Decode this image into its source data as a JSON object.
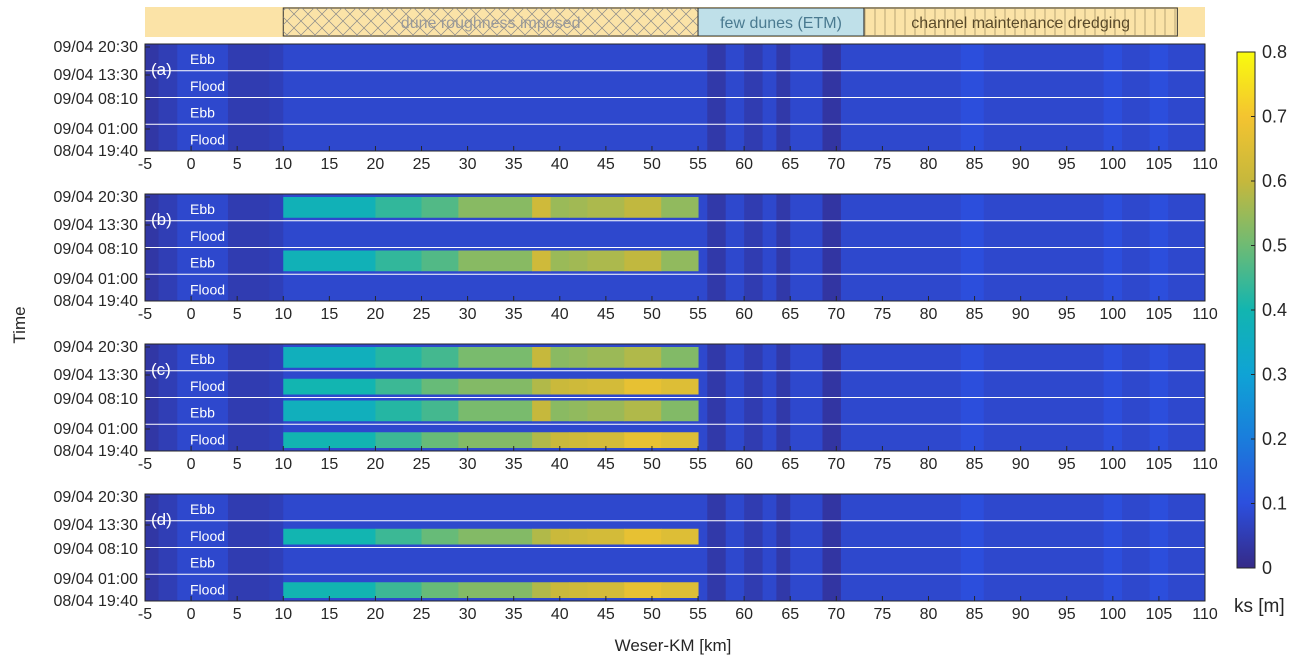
{
  "chart_data": {
    "type": "heatmap",
    "title": "",
    "xlabel": "Weser-KM [km]",
    "ylabel": "Time",
    "xlim": [
      -5,
      110
    ],
    "x_ticks": [
      "-5",
      "0",
      "5",
      "10",
      "15",
      "20",
      "25",
      "30",
      "35",
      "40",
      "45",
      "50",
      "55",
      "60",
      "65",
      "70",
      "75",
      "80",
      "85",
      "90",
      "95",
      "100",
      "105",
      "110"
    ],
    "y_ticks": [
      "09/04 20:30",
      "09/04 13:30",
      "09/04 08:10",
      "09/04 01:00",
      "08/04 19:40"
    ],
    "colorbar": {
      "label": "ks [m]",
      "range": [
        0,
        0.8
      ],
      "ticks": [
        "0",
        "0.1",
        "0.2",
        "0.3",
        "0.4",
        "0.5",
        "0.6",
        "0.7",
        "0.8"
      ],
      "colormap": "parula"
    },
    "zones": [
      {
        "label": "dune roughness imposed",
        "km_range": [
          10,
          55
        ],
        "pattern": "cross-hatch",
        "color": "#fbe3a7"
      },
      {
        "label": "few dunes (ETM)",
        "km_range": [
          55,
          73
        ],
        "pattern": "none",
        "color": "#bfe0e9"
      },
      {
        "label": "channel maintenance dredging",
        "km_range": [
          73,
          107
        ],
        "pattern": "vertical-lines",
        "color": "#fbe3a7"
      }
    ],
    "panels": [
      {
        "id": "(a)",
        "phase_labels": [
          "Ebb",
          "Flood",
          "Ebb",
          "Flood"
        ],
        "ebb_ks_peak": 0.08,
        "flood_ks_peak": 0.08
      },
      {
        "id": "(b)",
        "phase_labels": [
          "Ebb",
          "Flood",
          "Ebb",
          "Flood"
        ],
        "ebb_ks_peak": 0.62,
        "flood_ks_peak": 0.08
      },
      {
        "id": "(c)",
        "phase_labels": [
          "Ebb",
          "Flood",
          "Ebb",
          "Flood"
        ],
        "ebb_ks_peak": 0.6,
        "flood_ks_peak": 0.65
      },
      {
        "id": "(d)",
        "phase_labels": [
          "Ebb",
          "Flood",
          "Ebb",
          "Flood"
        ],
        "ebb_ks_peak": 0.08,
        "flood_ks_peak": 0.65
      }
    ],
    "background_ks": 0.08,
    "dune_ks_profile": {
      "km": [
        10,
        15,
        20,
        25,
        30,
        35,
        38,
        40,
        45,
        50,
        55
      ],
      "ebb_ks": [
        0.35,
        0.38,
        0.42,
        0.45,
        0.5,
        0.55,
        0.62,
        0.55,
        0.57,
        0.6,
        0.5
      ],
      "flood_ks": [
        0.35,
        0.38,
        0.4,
        0.45,
        0.5,
        0.5,
        0.55,
        0.58,
        0.6,
        0.65,
        0.6
      ]
    }
  }
}
